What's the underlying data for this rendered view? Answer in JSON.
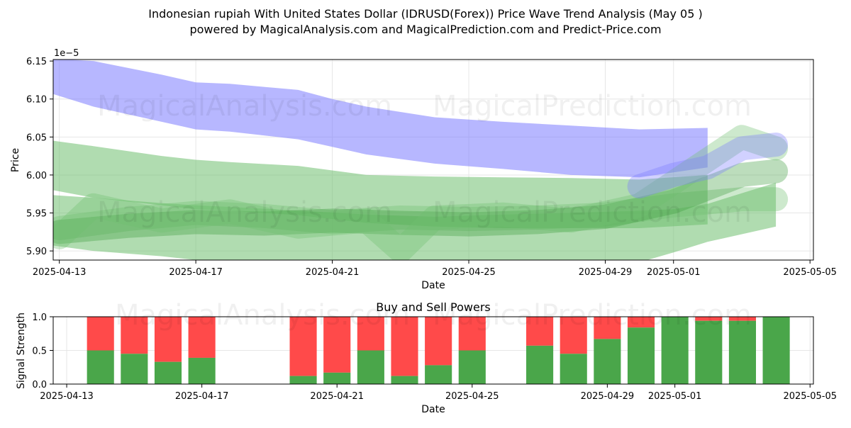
{
  "title_line1": "Indonesian rupiah With United States Dollar (IDRUSD(Forex)) Price Wave Trend Analysis (May 05 )",
  "title_line2": "powered by MagicalAnalysis.com and MagicalPrediction.com and Predict-Price.com",
  "watermarks": [
    "MagicalAnalysis.com",
    "MagicalPrediction.com"
  ],
  "chart_data": [
    {
      "type": "area",
      "xlabel": "Date",
      "ylabel": "Price",
      "offset_label": "1e−5",
      "xlim": [
        "2025-04-12",
        "2025-05-05"
      ],
      "ylim": [
        5.888,
        6.152
      ],
      "x_ticks": [
        "2025-04-13",
        "2025-04-17",
        "2025-04-21",
        "2025-04-25",
        "2025-04-29",
        "2025-05-01",
        "2025-05-05"
      ],
      "y_ticks": [
        "5.90",
        "5.95",
        "6.00",
        "6.05",
        "6.10",
        "6.15"
      ],
      "grid": true,
      "series": [
        {
          "color": "#7b7bff",
          "dates": [
            "2025-04-12",
            "2025-04-14",
            "2025-04-16",
            "2025-04-17",
            "2025-04-18",
            "2025-04-20",
            "2025-04-21",
            "2025-04-22",
            "2025-04-24",
            "2025-04-26",
            "2025-04-28",
            "2025-04-30",
            "2025-05-02"
          ],
          "upper": [
            6.155,
            6.15,
            6.132,
            6.122,
            6.12,
            6.112,
            6.1,
            6.09,
            6.076,
            6.07,
            6.065,
            6.06,
            6.062
          ],
          "lower": [
            6.118,
            6.09,
            6.07,
            6.06,
            6.057,
            6.047,
            6.037,
            6.027,
            6.015,
            6.008,
            6.0,
            5.997,
            6.01
          ]
        },
        {
          "color": "#6fbf6f",
          "dates": [
            "2025-04-12",
            "2025-04-14",
            "2025-04-16",
            "2025-04-17",
            "2025-04-18",
            "2025-04-20",
            "2025-04-22",
            "2025-04-24",
            "2025-04-26",
            "2025-04-28",
            "2025-04-30",
            "2025-05-02"
          ],
          "upper": [
            6.05,
            6.038,
            6.025,
            6.02,
            6.017,
            6.012,
            6.0,
            5.998,
            5.997,
            5.996,
            5.994,
            6.0
          ],
          "lower": [
            5.987,
            5.97,
            5.96,
            5.955,
            5.953,
            5.947,
            5.937,
            5.932,
            5.93,
            5.93,
            5.93,
            5.935
          ]
        },
        {
          "color": "#6fbf6f",
          "dates": [
            "2025-04-12",
            "2025-04-14",
            "2025-04-16",
            "2025-04-17",
            "2025-04-18",
            "2025-04-20",
            "2025-04-22",
            "2025-04-24",
            "2025-04-26",
            "2025-04-28",
            "2025-04-30",
            "2025-05-01",
            "2025-05-02",
            "2025-05-04"
          ],
          "upper": [
            5.976,
            5.97,
            5.963,
            5.96,
            5.958,
            5.953,
            5.948,
            5.945,
            5.948,
            5.95,
            5.953,
            5.955,
            5.962,
            5.99
          ],
          "lower": [
            5.912,
            5.9,
            5.893,
            5.888,
            5.886,
            5.883,
            5.88,
            5.878,
            5.878,
            5.88,
            5.885,
            5.898,
            5.912,
            5.932
          ]
        }
      ],
      "bands": [
        {
          "color": "#6fbf6f",
          "dates": [
            "2025-04-13",
            "2025-04-15",
            "2025-04-17",
            "2025-04-19",
            "2025-04-21",
            "2025-04-23",
            "2025-04-25",
            "2025-04-27",
            "2025-04-29",
            "2025-05-01",
            "2025-05-03",
            "2025-05-04"
          ],
          "center": [
            5.93,
            5.942,
            5.95,
            5.946,
            5.938,
            5.944,
            5.942,
            5.944,
            5.948,
            5.96,
            5.968,
            5.968
          ]
        },
        {
          "color": "#3f9f3f",
          "dates": [
            "2025-04-13",
            "2025-04-15",
            "2025-04-17",
            "2025-04-19",
            "2025-04-21",
            "2025-04-23",
            "2025-04-25",
            "2025-04-27",
            "2025-04-29",
            "2025-05-01",
            "2025-05-03",
            "2025-05-04"
          ],
          "center": [
            5.925,
            5.933,
            5.938,
            5.936,
            5.94,
            5.937,
            5.935,
            5.938,
            5.945,
            5.965,
            6.0,
            6.005
          ]
        },
        {
          "color": "#6fbf6f",
          "dates": [
            "2025-04-13",
            "2025-04-14",
            "2025-04-16",
            "2025-04-18",
            "2025-04-20",
            "2025-04-22",
            "2025-04-23",
            "2025-04-24",
            "2025-04-26",
            "2025-04-28",
            "2025-04-30",
            "2025-05-02",
            "2025-05-03",
            "2025-05-04"
          ],
          "center": [
            5.918,
            5.96,
            5.94,
            5.952,
            5.932,
            5.94,
            5.9,
            5.944,
            5.948,
            5.94,
            5.96,
            6.02,
            6.05,
            6.035
          ]
        },
        {
          "color": "#7b7bff",
          "dates": [
            "2025-04-30",
            "2025-05-01",
            "2025-05-02",
            "2025-05-03",
            "2025-05-04"
          ],
          "center": [
            5.985,
            6.0,
            6.01,
            6.035,
            6.04
          ]
        }
      ]
    },
    {
      "type": "bar",
      "title": "Buy and Sell Powers",
      "xlabel": "Date",
      "ylabel": "Signal Strength",
      "ylim": [
        0,
        1
      ],
      "y_ticks": [
        "0.0",
        "0.5",
        "1.0"
      ],
      "x_ticks": [
        "2025-04-13",
        "2025-04-17",
        "2025-04-21",
        "2025-04-25",
        "2025-04-29",
        "2025-05-01",
        "2025-05-05"
      ],
      "grid": true,
      "buy_color": "#4aa64a",
      "sell_color": "#ff4a4a",
      "dates": [
        "2025-04-14",
        "2025-04-15",
        "2025-04-16",
        "2025-04-17",
        "2025-04-20",
        "2025-04-21",
        "2025-04-22",
        "2025-04-23",
        "2025-04-24",
        "2025-04-25",
        "2025-04-27",
        "2025-04-28",
        "2025-04-29",
        "2025-04-30",
        "2025-05-01",
        "2025-05-02",
        "2025-05-03",
        "2025-05-04"
      ],
      "buy": [
        0.5,
        0.45,
        0.33,
        0.39,
        0.12,
        0.17,
        0.5,
        0.12,
        0.28,
        0.5,
        0.57,
        0.45,
        0.67,
        0.84,
        1.0,
        0.94,
        0.94,
        1.0
      ]
    }
  ]
}
